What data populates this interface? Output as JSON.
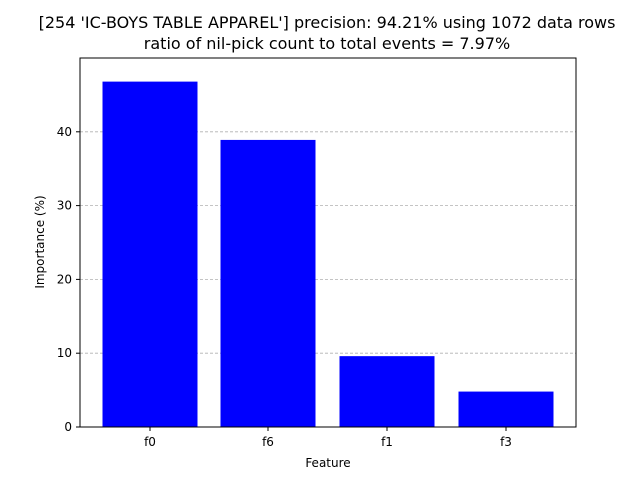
{
  "chart_data": {
    "type": "bar",
    "title_line1": "[254 'IC-BOYS TABLE APPAREL'] precision: 94.21% using 1072 data rows",
    "title_line2": "ratio of nil-pick count to total events = 7.97%",
    "xlabel": "Feature",
    "ylabel": "Importance (%)",
    "categories": [
      "f0",
      "f6",
      "f1",
      "f3"
    ],
    "values": [
      46.8,
      38.9,
      9.6,
      4.8
    ],
    "ylim": [
      0,
      50
    ],
    "yticks": [
      0,
      10,
      20,
      30,
      40
    ],
    "grid": "y-dashed",
    "bar_color": "#0000ff",
    "grid_color": "#b0b0b0"
  }
}
